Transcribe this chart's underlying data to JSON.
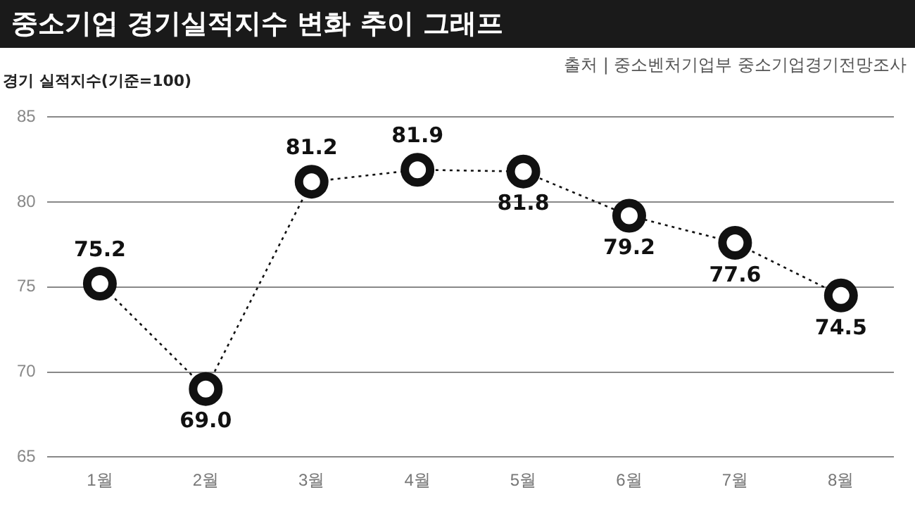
{
  "chart_data": {
    "type": "line",
    "title": "중소기업 경기실적지수 변화 추이 그래프",
    "ylabel": "경기 실적지수(기준=100)",
    "annotations": [
      "출처 | 중소벤처기업부 중소기업경기전망조사"
    ],
    "categories": [
      "1월",
      "2월",
      "3월",
      "4월",
      "5월",
      "6월",
      "7월",
      "8월"
    ],
    "series": [
      {
        "color": "#111111",
        "values": [
          75.2,
          69.0,
          81.2,
          81.9,
          81.8,
          79.2,
          77.6,
          74.5
        ],
        "value_labels": [
          "75.2",
          "69.0",
          "81.2",
          "81.9",
          "81.8",
          "79.2",
          "77.6",
          "74.5"
        ]
      }
    ],
    "ylim": [
      65,
      85
    ],
    "yticks": [
      65,
      70,
      75,
      80,
      85
    ],
    "grid": "y",
    "legend": false,
    "marker": "circle",
    "line_style": "dotted"
  }
}
